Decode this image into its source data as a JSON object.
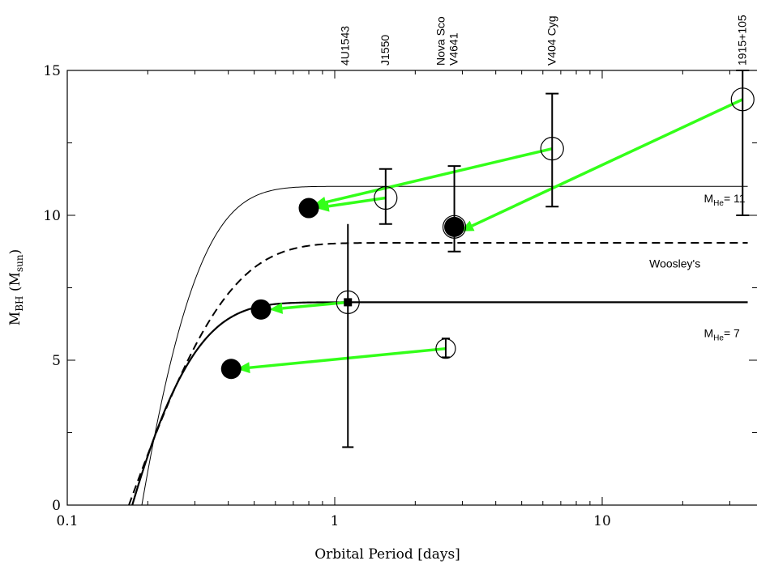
{
  "chart_data": {
    "type": "scatter",
    "xlabel": "Orbital Period [days]",
    "ylabel": {
      "main": "M",
      "sub1": "BH",
      "paren_open": " (M",
      "sub2": "sun",
      "paren_close": ")"
    },
    "x_scale": "log",
    "xlim": [
      0.1,
      35
    ],
    "ylim": [
      0,
      15
    ],
    "x_ticks": [
      {
        "value": 0.1,
        "label": "0.1"
      },
      {
        "value": 1,
        "label": "1"
      },
      {
        "value": 10,
        "label": "10"
      }
    ],
    "y_ticks": [
      {
        "value": 0,
        "label": "0"
      },
      {
        "value": 5,
        "label": "5"
      },
      {
        "value": 10,
        "label": "10"
      },
      {
        "value": 15,
        "label": "15"
      }
    ],
    "top_labels": [
      {
        "x": 1.1,
        "lines": [
          "4U1543"
        ]
      },
      {
        "x": 1.55,
        "lines": [
          "J1550"
        ]
      },
      {
        "x": 2.8,
        "lines": [
          "Nova Sco",
          "V4641"
        ]
      },
      {
        "x": 6.5,
        "lines": [
          "V404 Cyg"
        ]
      },
      {
        "x": 33.5,
        "lines": [
          "1915+105"
        ]
      }
    ],
    "curve_labels": [
      {
        "text_main": "M",
        "text_sub": "He",
        "text_tail": "= 11",
        "x": 24,
        "y": 10.45
      },
      {
        "text_main": "Woosley's",
        "x": 15,
        "y": 8.2
      },
      {
        "text_main": "M",
        "text_sub": "He",
        "text_tail": "= 7",
        "x": 24,
        "y": 5.8
      }
    ],
    "curves": [
      {
        "plateau": 11,
        "x0": 0.19,
        "tau": 0.09,
        "style": "thin"
      },
      {
        "plateau": 9.05,
        "x0": 0.17,
        "tau": 0.14,
        "style": "dashed"
      },
      {
        "plateau": 7,
        "x0": 0.175,
        "tau": 0.09,
        "style": "thick"
      }
    ],
    "observed": [
      {
        "x": 1.12,
        "y": 7.0,
        "err_low": 2.0,
        "err_high": 9.7,
        "cap": false,
        "square": true
      },
      {
        "x": 1.55,
        "y": 10.6,
        "err_low": 9.7,
        "err_high": 11.6,
        "cap": true
      },
      {
        "x": 2.8,
        "y": 9.6,
        "err_low": 8.75,
        "err_high": 11.7,
        "cap": true
      },
      {
        "x": 2.6,
        "y": 5.4,
        "err_low": 5.1,
        "err_high": 5.75,
        "cap": true,
        "small": true
      },
      {
        "x": 6.5,
        "y": 12.3,
        "err_low": 10.3,
        "err_high": 14.2,
        "cap": true
      },
      {
        "x": 33.5,
        "y": 14.0,
        "err_low": 10.0,
        "err_high": 15.0,
        "cap": true
      }
    ],
    "predicted": [
      {
        "x": 0.8,
        "y": 10.25
      },
      {
        "x": 2.8,
        "y": 9.6
      },
      {
        "x": 0.53,
        "y": 6.75
      },
      {
        "x": 0.41,
        "y": 4.7
      }
    ],
    "arrows": [
      {
        "from": [
          6.5,
          12.3
        ],
        "to": [
          0.83,
          10.35
        ]
      },
      {
        "from": [
          1.55,
          10.6
        ],
        "to": [
          0.85,
          10.25
        ]
      },
      {
        "from": [
          33.5,
          14.0
        ],
        "to": [
          2.95,
          9.45
        ]
      },
      {
        "from": [
          1.12,
          7.0
        ],
        "to": [
          0.57,
          6.75
        ]
      },
      {
        "from": [
          2.6,
          5.4
        ],
        "to": [
          0.43,
          4.7
        ]
      }
    ],
    "colors": {
      "arrow": "#33ff19",
      "ink": "#000000"
    }
  }
}
